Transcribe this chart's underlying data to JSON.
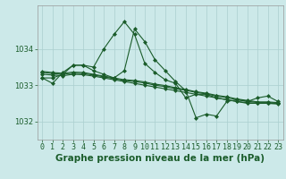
{
  "title": "Graphe pression niveau de la mer (hPa)",
  "xlabel_hours": [
    0,
    1,
    2,
    3,
    4,
    5,
    6,
    7,
    8,
    9,
    10,
    11,
    12,
    13,
    14,
    15,
    16,
    17,
    18,
    19,
    20,
    21,
    22,
    23
  ],
  "xlim": [
    -0.5,
    23.5
  ],
  "ylim": [
    1031.5,
    1035.2
  ],
  "yticks": [
    1032,
    1033,
    1034
  ],
  "background_color": "#cce9e9",
  "grid_color": "#aacfcf",
  "line_color": "#1a5c2a",
  "series": [
    [
      1033.2,
      1033.05,
      1033.35,
      1033.55,
      1033.55,
      1033.4,
      1033.3,
      1033.2,
      1033.4,
      1034.55,
      1034.2,
      1033.7,
      1033.4,
      1033.1,
      1032.85,
      1032.1,
      1032.2,
      1032.15,
      1032.55,
      1032.6,
      1032.55,
      1032.65,
      1032.7,
      1032.55
    ],
    [
      1033.3,
      1033.28,
      1033.26,
      1033.3,
      1033.29,
      1033.25,
      1033.2,
      1033.15,
      1033.1,
      1033.05,
      1033.0,
      1032.95,
      1032.9,
      1032.85,
      1032.8,
      1032.75,
      1032.7,
      1032.65,
      1032.6,
      1032.55,
      1032.52,
      1032.5,
      1032.5,
      1032.48
    ],
    [
      1033.35,
      1033.32,
      1033.3,
      1033.33,
      1033.32,
      1033.28,
      1033.23,
      1033.18,
      1033.13,
      1033.1,
      1033.06,
      1033.0,
      1032.96,
      1032.9,
      1032.86,
      1032.8,
      1032.76,
      1032.7,
      1032.66,
      1032.6,
      1032.56,
      1032.52,
      1032.52,
      1032.5
    ],
    [
      1033.38,
      1033.35,
      1033.33,
      1033.36,
      1033.35,
      1033.3,
      1033.25,
      1033.2,
      1033.15,
      1033.13,
      1033.09,
      1033.03,
      1032.99,
      1032.93,
      1032.88,
      1032.82,
      1032.78,
      1032.72,
      1032.68,
      1032.62,
      1032.58,
      1032.54,
      1032.54,
      1032.52
    ],
    [
      1033.2,
      1033.2,
      1033.3,
      1033.55,
      1033.55,
      1033.5,
      1034.0,
      1034.4,
      1034.75,
      1034.4,
      1033.6,
      1033.35,
      1033.15,
      1033.05,
      1032.65,
      1032.75,
      1032.75,
      1032.65,
      1032.6,
      1032.55,
      1032.5,
      1032.5,
      1032.5,
      1032.5
    ]
  ],
  "title_fontsize": 7.5,
  "tick_fontsize": 6,
  "marker": "D",
  "markersize": 2.0,
  "linewidth": 0.8
}
